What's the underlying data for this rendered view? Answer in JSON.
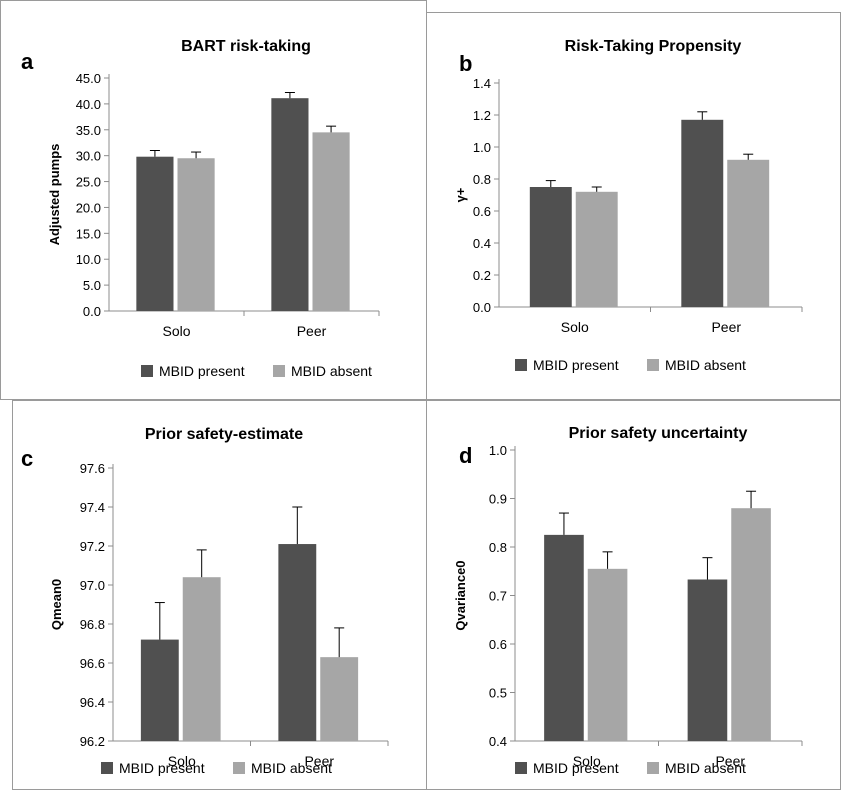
{
  "colors": {
    "present": "#505050",
    "absent": "#a6a6a6",
    "axis": "#8c8c8c"
  },
  "legend": [
    "MBID present",
    "MBID absent"
  ],
  "chart_data": [
    {
      "type": "bar",
      "letter": "a",
      "title": "BART risk-taking",
      "ylabel": "Adjusted pumps",
      "categories": [
        "Solo",
        "Peer"
      ],
      "ylim": [
        0,
        45
      ],
      "yticks": [
        "0.0",
        "5.0",
        "10.0",
        "15.0",
        "20.0",
        "25.0",
        "30.0",
        "35.0",
        "40.0",
        "45.0"
      ],
      "series": [
        {
          "name": "MBID  present",
          "values": [
            29.8,
            41.1
          ],
          "errors": [
            1.2,
            1.1
          ]
        },
        {
          "name": "MBID absent",
          "values": [
            29.5,
            34.5
          ],
          "errors": [
            1.2,
            1.2
          ]
        }
      ]
    },
    {
      "type": "bar",
      "letter": "b",
      "title": "Risk-Taking Propensity",
      "ylabel": "γ+",
      "categories": [
        "Solo",
        "Peer"
      ],
      "ylim": [
        0,
        1.4
      ],
      "yticks": [
        "0.0",
        "0.2",
        "0.4",
        "0.6",
        "0.8",
        "1.0",
        "1.2",
        "1.4"
      ],
      "series": [
        {
          "name": "MBID present",
          "values": [
            0.75,
            1.17
          ],
          "errors": [
            0.04,
            0.05
          ]
        },
        {
          "name": "MBID absent",
          "values": [
            0.72,
            0.92
          ],
          "errors": [
            0.03,
            0.035
          ]
        }
      ]
    },
    {
      "type": "bar",
      "letter": "c",
      "title": "Prior safety-estimate",
      "ylabel": "Qmean0",
      "categories": [
        "Solo",
        "Peer"
      ],
      "ylim": [
        96.2,
        97.6
      ],
      "yticks": [
        "96.2",
        "96.4",
        "96.6",
        "96.8",
        "97.0",
        "97.2",
        "97.4",
        "97.6"
      ],
      "series": [
        {
          "name": "MBID present",
          "values": [
            96.72,
            97.21
          ],
          "errors": [
            0.19,
            0.19
          ]
        },
        {
          "name": "MBID absent",
          "values": [
            97.04,
            96.63
          ],
          "errors": [
            0.14,
            0.15
          ]
        }
      ]
    },
    {
      "type": "bar",
      "letter": "d",
      "title": "Prior safety uncertainty",
      "ylabel": "Qvariance0",
      "categories": [
        "Solo",
        "Peer"
      ],
      "ylim": [
        0.4,
        1.0
      ],
      "yticks": [
        "0.4",
        "0.5",
        "0.6",
        "0.7",
        "0.8",
        "0.9",
        "1.0"
      ],
      "series": [
        {
          "name": "MBID present",
          "values": [
            0.825,
            0.733
          ],
          "errors": [
            0.045,
            0.045
          ]
        },
        {
          "name": "MBID absent",
          "values": [
            0.755,
            0.88
          ],
          "errors": [
            0.035,
            0.035
          ]
        }
      ]
    }
  ]
}
